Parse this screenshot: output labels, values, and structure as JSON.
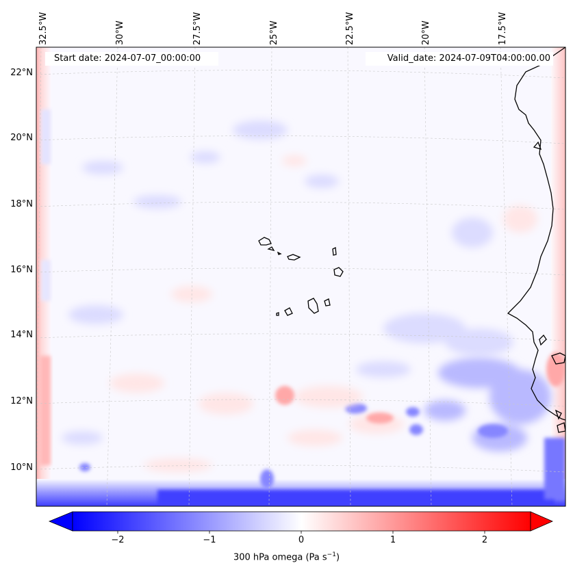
{
  "map": {
    "start_date_label": "Start date: 2024-07-07_00:00:00",
    "valid_date_label": "Valid_date: 2024-07-09T04:00:00.00",
    "longitude_labels": [
      "32.5°W",
      "30°W",
      "27.5°W",
      "25°W",
      "22.5°W",
      "20°W",
      "17.5°W"
    ],
    "latitude_labels": [
      "22°N",
      "20°N",
      "18°N",
      "16°N",
      "14°N",
      "12°N",
      "10°N"
    ],
    "region": "Cape Verde Islands and West African coast",
    "variable": "300 hPa omega",
    "colormap": "bwr",
    "colors": {
      "negative": "#0000ff",
      "zero": "#ffffff",
      "positive": "#ff0000",
      "coastline": "#000000"
    }
  },
  "colorbar": {
    "ticks": [
      "−2",
      "−1",
      "0",
      "1",
      "2"
    ],
    "tick_values": [
      -2,
      -1,
      0,
      1,
      2
    ],
    "range": [
      -2.6,
      2.6
    ],
    "extend": "both",
    "label_main": "300 hPa omega (Pa s",
    "label_exp": "−1",
    "label_end": ")"
  }
}
